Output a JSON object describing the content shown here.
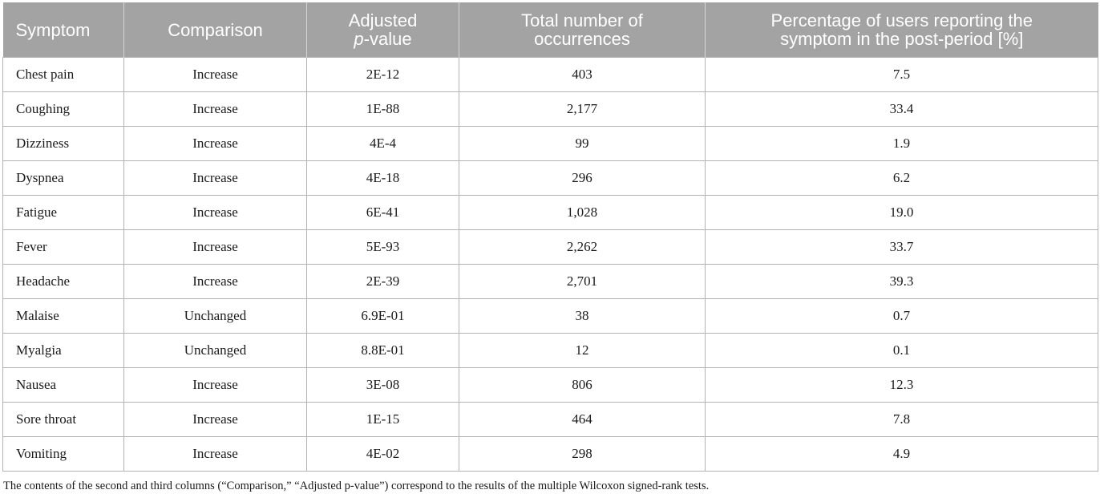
{
  "table": {
    "headers": {
      "symptom": "Symptom",
      "comparison": "Comparison",
      "adjusted_line1": "Adjusted",
      "adjusted_p": "p",
      "adjusted_value": "-value",
      "total_line1": "Total number of",
      "total_line2": "occurrences",
      "pct_line1": "Percentage of users reporting the",
      "pct_line2": "symptom in the post-period [%]"
    },
    "rows": [
      {
        "symptom": "Chest pain",
        "comparison": "Increase",
        "p_value": "2E-12",
        "total": "403",
        "percentage": "7.5"
      },
      {
        "symptom": "Coughing",
        "comparison": "Increase",
        "p_value": "1E-88",
        "total": "2,177",
        "percentage": "33.4"
      },
      {
        "symptom": "Dizziness",
        "comparison": "Increase",
        "p_value": "4E-4",
        "total": "99",
        "percentage": "1.9"
      },
      {
        "symptom": "Dyspnea",
        "comparison": "Increase",
        "p_value": "4E-18",
        "total": "296",
        "percentage": "6.2"
      },
      {
        "symptom": "Fatigue",
        "comparison": "Increase",
        "p_value": "6E-41",
        "total": "1,028",
        "percentage": "19.0"
      },
      {
        "symptom": "Fever",
        "comparison": "Increase",
        "p_value": "5E-93",
        "total": "2,262",
        "percentage": "33.7"
      },
      {
        "symptom": "Headache",
        "comparison": "Increase",
        "p_value": "2E-39",
        "total": "2,701",
        "percentage": "39.3"
      },
      {
        "symptom": "Malaise",
        "comparison": "Unchanged",
        "p_value": "6.9E-01",
        "total": "38",
        "percentage": "0.7"
      },
      {
        "symptom": "Myalgia",
        "comparison": "Unchanged",
        "p_value": "8.8E-01",
        "total": "12",
        "percentage": "0.1"
      },
      {
        "symptom": "Nausea",
        "comparison": "Increase",
        "p_value": "3E-08",
        "total": "806",
        "percentage": "12.3"
      },
      {
        "symptom": "Sore throat",
        "comparison": "Increase",
        "p_value": "1E-15",
        "total": "464",
        "percentage": "7.8"
      },
      {
        "symptom": "Vomiting",
        "comparison": "Increase",
        "p_value": "4E-02",
        "total": "298",
        "percentage": "4.9"
      }
    ]
  },
  "footnote": "The contents of the second and third columns (“Comparison,” “Adjusted p-value”) correspond to the results of the multiple Wilcoxon signed-rank tests.",
  "colors": {
    "header_bg": "#a3a3a3",
    "header_text": "#ffffff",
    "grid": "#b3b3b3"
  }
}
